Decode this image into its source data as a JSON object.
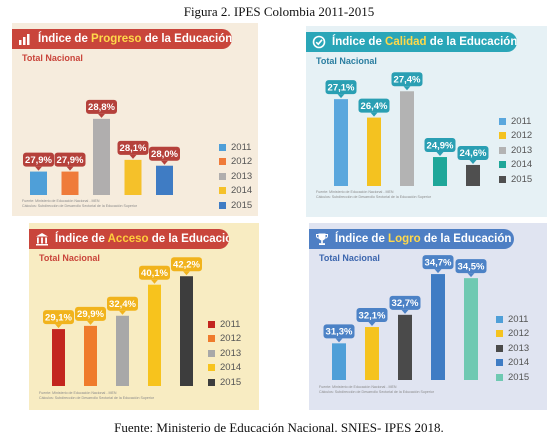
{
  "figure_title": "Figura 2. IPES Colombia 2011-2015",
  "source": "Fuente: Ministerio de Educación Nacional. SNIES- IPES 2018.",
  "chart_data": [
    {
      "type": "bar",
      "title_pre": "Índice de ",
      "title_highlight": "Progreso",
      "title_post": " de la Educación Superior",
      "subtitle": "Total Nacional",
      "icon": "progress-icon",
      "categories": [
        "2011",
        "2012",
        "2013",
        "2014",
        "2015"
      ],
      "values": [
        27.9,
        27.9,
        28.8,
        28.1,
        28.0
      ],
      "labels": [
        "27,9%",
        "27,9%",
        "28,8%",
        "28,1%",
        "28,0%"
      ],
      "colors": [
        "#4f9fd8",
        "#ef7b3a",
        "#b0aeae",
        "#f5c12a",
        "#3f7cc4"
      ],
      "label_color": "#b5413b",
      "ylim": [
        27.5,
        28.9
      ],
      "footnote": [
        "Fuente: Ministerio de Educación Nacional - MEN",
        "Cálculos: Subdirección de Desarrollo Sectorial de la Educación Superior"
      ]
    },
    {
      "type": "bar",
      "title_pre": "Índice de ",
      "title_highlight": "Calidad",
      "title_post": " de la Educación Superior",
      "subtitle": "Total Nacional",
      "icon": "quality-check-icon",
      "categories": [
        "2011",
        "2012",
        "2013",
        "2014",
        "2015"
      ],
      "values": [
        27.1,
        26.4,
        27.4,
        24.9,
        24.6
      ],
      "labels": [
        "27,1%",
        "26,4%",
        "27,4%",
        "24,9%",
        "24,6%"
      ],
      "colors": [
        "#5aa7dd",
        "#f4c220",
        "#b3b3b3",
        "#1fa799",
        "#4f4f4f"
      ],
      "label_color": "#2a9fb3",
      "ylim": [
        23.8,
        27.6
      ],
      "footnote": [
        "Fuente: Ministerio de Educación Nacional - MEN",
        "Cálculos: Subdirección de Desarrollo Sectorial de la Educación Superior"
      ]
    },
    {
      "type": "bar",
      "title_pre": "Índice de ",
      "title_highlight": "Acceso",
      "title_post": " de la Educación Superior",
      "subtitle": "Total Nacional",
      "icon": "building-icon",
      "categories": [
        "2011",
        "2012",
        "2013",
        "2014",
        "2015"
      ],
      "values": [
        29.1,
        29.9,
        32.4,
        40.1,
        42.2
      ],
      "labels": [
        "29,1%",
        "29,9%",
        "32,4%",
        "40,1%",
        "42,2%"
      ],
      "colors": [
        "#c3261f",
        "#ef7b2c",
        "#a8a8a8",
        "#f7c31d",
        "#3d3d3d"
      ],
      "label_color": "#f1b31c",
      "ylim": [
        15,
        43
      ],
      "footnote": [
        "Fuente: Ministerio de Educación Nacional - MEN",
        "Cálculos: Subdirección de Desarrollo Sectorial de la Educación Superior"
      ]
    },
    {
      "type": "bar",
      "title_pre": "Índice de ",
      "title_highlight": "Logro",
      "title_post": " de la Educación Superior",
      "subtitle": "Total Nacional",
      "icon": "trophy-icon",
      "categories": [
        "2011",
        "2012",
        "2013",
        "2014",
        "2015"
      ],
      "values": [
        31.3,
        32.1,
        32.7,
        34.7,
        34.5
      ],
      "labels": [
        "31,3%",
        "32,1%",
        "32,7%",
        "34,7%",
        "34,5%"
      ],
      "colors": [
        "#4f9fd8",
        "#f5c31f",
        "#4a4a4a",
        "#3f7cc4",
        "#6fc9b2"
      ],
      "label_color": "#4c82c6",
      "ylim": [
        29.5,
        34.9
      ],
      "footnote": [
        "Fuente: Ministerio de Educación Nacional - MEN",
        "Cálculos: Subdirección de Desarrollo Sectorial de la Educación Superior"
      ]
    }
  ]
}
